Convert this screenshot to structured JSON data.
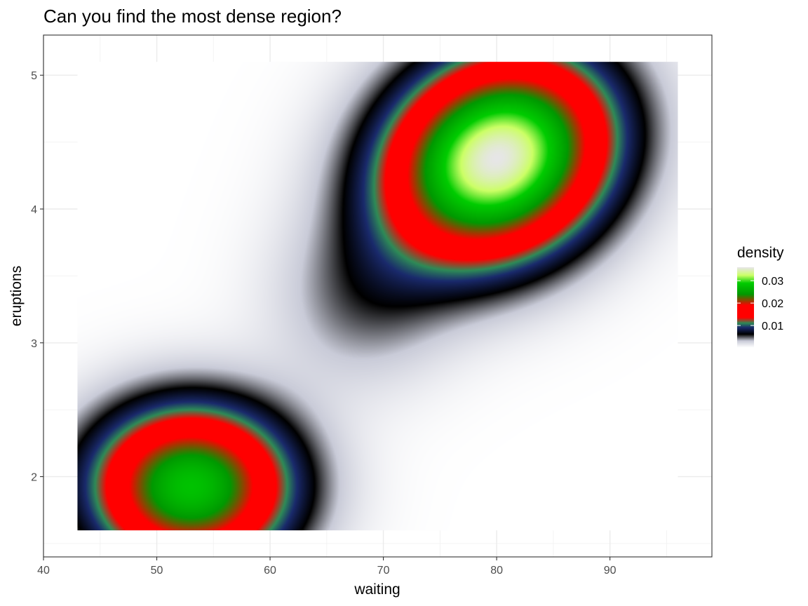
{
  "chart_data": {
    "type": "heatmap",
    "title": "Can you find the most dense region?",
    "xlabel": "waiting",
    "ylabel": "eruptions",
    "xlim": [
      40,
      99
    ],
    "ylim": [
      1.4,
      5.3
    ],
    "data_extent": {
      "x": [
        43,
        96
      ],
      "y": [
        1.6,
        5.1
      ]
    },
    "x_ticks": [
      40,
      50,
      60,
      70,
      80,
      90
    ],
    "y_ticks": [
      2,
      3,
      4,
      5
    ],
    "grid": true,
    "legend": {
      "title": "density",
      "placement": "right",
      "range": [
        0,
        0.036
      ],
      "breaks": [
        {
          "value": 0.03,
          "label": "0.03"
        },
        {
          "value": 0.02,
          "label": "0.02"
        },
        {
          "value": 0.01,
          "label": "0.01"
        }
      ]
    },
    "peaks": [
      {
        "waiting": 80,
        "eruptions": 4.38,
        "density": 0.036
      },
      {
        "waiting": 53,
        "eruptions": 1.93,
        "density": 0.028
      }
    ],
    "color_stops": [
      {
        "value": 0.0,
        "color": "#ffffff"
      },
      {
        "value": 0.003,
        "color": "#c9cbd8"
      },
      {
        "value": 0.006,
        "color": "#000000"
      },
      {
        "value": 0.009,
        "color": "#1a2a6c"
      },
      {
        "value": 0.011,
        "color": "#2e8b57"
      },
      {
        "value": 0.0135,
        "color": "#ff0000"
      },
      {
        "value": 0.019,
        "color": "#ff0000"
      },
      {
        "value": 0.024,
        "color": "#009900"
      },
      {
        "value": 0.029,
        "color": "#00cc00"
      },
      {
        "value": 0.0325,
        "color": "#ccff66"
      },
      {
        "value": 0.036,
        "color": "#e6e6e6"
      }
    ]
  }
}
